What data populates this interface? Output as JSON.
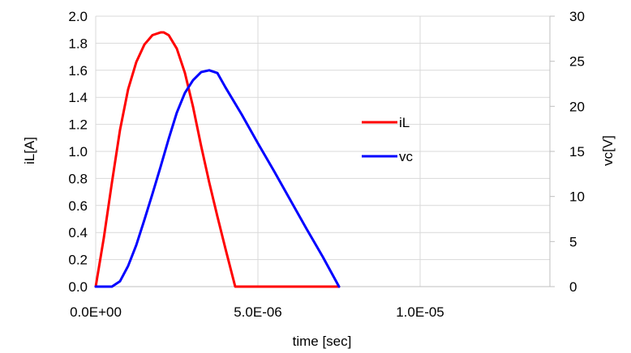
{
  "chart_data": {
    "type": "line",
    "title": "",
    "xlabel": "time [sec]",
    "ylabel": "iL[A]",
    "y2label": "vc[V]",
    "xlim": [
      0,
      1.4e-05
    ],
    "ylim": [
      0,
      2.0
    ],
    "y2lim": [
      0,
      30
    ],
    "x_ticks": [
      0,
      5e-06,
      1e-05
    ],
    "x_tick_labels": [
      "0.0E+00",
      "5.0E-06",
      "1.0E-05"
    ],
    "y_ticks": [
      0,
      0.2,
      0.4,
      0.6,
      0.8,
      1.0,
      1.2,
      1.4,
      1.6,
      1.8,
      2.0
    ],
    "y_tick_labels": [
      "0.0",
      "0.2",
      "0.4",
      "0.6",
      "0.8",
      "1.0",
      "1.2",
      "1.4",
      "1.6",
      "1.8",
      "2.0"
    ],
    "y2_ticks": [
      0,
      5,
      10,
      15,
      20,
      25,
      30
    ],
    "y2_tick_labels": [
      "0",
      "5",
      "10",
      "15",
      "20",
      "25",
      "30"
    ],
    "grid": true,
    "legend": "center-right",
    "series": [
      {
        "name": "iL",
        "axis": "left",
        "color": "#ff0000",
        "x": [
          0,
          2.5e-07,
          5e-07,
          7.5e-07,
          1e-06,
          1.25e-06,
          1.5e-06,
          1.75e-06,
          2e-06,
          2.1e-06,
          2.25e-06,
          2.5e-06,
          2.75e-06,
          3e-06,
          3.25e-06,
          3.5e-06,
          3.75e-06,
          4e-06,
          4.3e-06,
          4.5e-06,
          5e-06,
          6e-06,
          7e-06,
          7.5e-06
        ],
        "y": [
          0,
          0.36,
          0.77,
          1.16,
          1.46,
          1.66,
          1.79,
          1.86,
          1.88,
          1.88,
          1.86,
          1.76,
          1.58,
          1.33,
          1.04,
          0.77,
          0.52,
          0.28,
          0,
          0,
          0,
          0,
          0,
          0
        ]
      },
      {
        "name": "vc",
        "axis": "right",
        "color": "#0000ff",
        "x": [
          0,
          5e-07,
          7.5e-07,
          1e-06,
          1.25e-06,
          1.5e-06,
          1.75e-06,
          2e-06,
          2.25e-06,
          2.5e-06,
          2.75e-06,
          3e-06,
          3.25e-06,
          3.5e-06,
          3.75e-06,
          4e-06,
          4.5e-06,
          5e-06,
          5.5e-06,
          6e-06,
          6.5e-06,
          7e-06,
          7.5e-06
        ],
        "y": [
          0,
          0,
          0.6,
          2.3,
          4.6,
          7.4,
          10.3,
          13.3,
          16.4,
          19.3,
          21.5,
          22.9,
          23.8,
          24.0,
          23.7,
          22.1,
          19.1,
          15.9,
          12.8,
          9.6,
          6.4,
          3.3,
          0
        ]
      }
    ]
  }
}
